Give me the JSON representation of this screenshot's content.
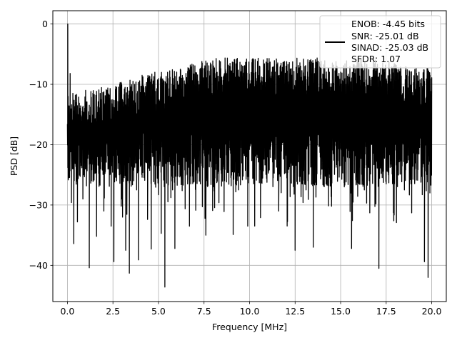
{
  "chart_data": {
    "type": "line",
    "title": "",
    "xlabel": "Frequency [MHz]",
    "ylabel": "PSD [dB]",
    "xlim": [
      -0.8,
      20.8
    ],
    "ylim": [
      -46,
      2.2
    ],
    "xticks": [
      0.0,
      2.5,
      5.0,
      7.5,
      10.0,
      12.5,
      15.0,
      17.5,
      20.0
    ],
    "xtick_labels": [
      "0.0",
      "2.5",
      "5.0",
      "7.5",
      "10.0",
      "12.5",
      "15.0",
      "17.5",
      "20.0"
    ],
    "yticks": [
      0,
      -10,
      -20,
      -30,
      -40
    ],
    "ytick_labels": [
      "0",
      "−10",
      "−20",
      "−30",
      "−40"
    ],
    "grid": true,
    "legend_position": "top-right",
    "series": [
      {
        "color": "#000000",
        "description": "dense noisy PSD spectrum, mostly between about -27 and -6 dB, peak 0 dB at 0 MHz, minimum about -43.6 dB near 5.4 MHz",
        "points": [
          [
            0.0,
            -16.7
          ],
          [
            0.02,
            0.0
          ],
          [
            0.04,
            -12.0
          ],
          [
            0.08,
            -25.5
          ],
          [
            0.15,
            -8.2
          ],
          [
            0.22,
            -29.6
          ],
          [
            0.3,
            -11.5
          ],
          [
            0.35,
            -36.4
          ],
          [
            0.45,
            -13.0
          ],
          [
            0.55,
            -32.8
          ],
          [
            0.7,
            -14.0
          ],
          [
            0.85,
            -29.0
          ],
          [
            1.0,
            -11.0
          ],
          [
            1.2,
            -40.4
          ],
          [
            1.4,
            -12.5
          ],
          [
            1.6,
            -35.2
          ],
          [
            1.8,
            -11.5
          ],
          [
            2.0,
            -31.0
          ],
          [
            2.2,
            -11.0
          ],
          [
            2.4,
            -33.5
          ],
          [
            2.55,
            -39.4
          ],
          [
            2.7,
            -10.5
          ],
          [
            3.0,
            -29.0
          ],
          [
            3.2,
            -37.5
          ],
          [
            3.4,
            -41.3
          ],
          [
            3.6,
            -9.5
          ],
          [
            3.8,
            -27.5
          ],
          [
            3.9,
            -39.1
          ],
          [
            4.1,
            -8.5
          ],
          [
            4.4,
            -32.4
          ],
          [
            4.6,
            -37.3
          ],
          [
            4.8,
            -8.0
          ],
          [
            5.0,
            -28.3
          ],
          [
            5.15,
            -34.7
          ],
          [
            5.35,
            -43.6
          ],
          [
            5.5,
            -8.0
          ],
          [
            5.7,
            -26.0
          ],
          [
            5.9,
            -37.2
          ],
          [
            6.2,
            -7.5
          ],
          [
            6.6,
            -26.5
          ],
          [
            6.7,
            -33.5
          ],
          [
            7.0,
            -7.5
          ],
          [
            7.3,
            -26.5
          ],
          [
            7.6,
            -35.0
          ],
          [
            7.9,
            -7.5
          ],
          [
            8.2,
            -26.3
          ],
          [
            8.6,
            -31.1
          ],
          [
            8.9,
            -7.0
          ],
          [
            9.1,
            -34.9
          ],
          [
            9.4,
            -27.5
          ],
          [
            9.7,
            -7.0
          ],
          [
            9.9,
            -33.5
          ],
          [
            10.2,
            -25.5
          ],
          [
            10.6,
            -32.1
          ],
          [
            11.0,
            -6.5
          ],
          [
            11.3,
            -25.5
          ],
          [
            11.6,
            -31.0
          ],
          [
            12.0,
            -7.0
          ],
          [
            12.3,
            -25.0
          ],
          [
            12.5,
            -37.5
          ],
          [
            12.8,
            -7.0
          ],
          [
            13.1,
            -27.5
          ],
          [
            13.5,
            -37.0
          ],
          [
            13.9,
            -7.0
          ],
          [
            14.2,
            -26.5
          ],
          [
            14.5,
            -30.2
          ],
          [
            14.8,
            -7.0
          ],
          [
            15.2,
            -27.0
          ],
          [
            15.6,
            -37.2
          ],
          [
            15.9,
            -7.0
          ],
          [
            16.3,
            -27.5
          ],
          [
            16.6,
            -31.3
          ],
          [
            17.0,
            -7.5
          ],
          [
            17.1,
            -40.5
          ],
          [
            17.5,
            -26.5
          ],
          [
            17.9,
            -30.8
          ],
          [
            18.2,
            -7.5
          ],
          [
            18.5,
            -27.5
          ],
          [
            18.9,
            -31.3
          ],
          [
            19.3,
            -8.0
          ],
          [
            19.6,
            -39.4
          ],
          [
            19.8,
            -42.0
          ],
          [
            19.9,
            -28.0
          ],
          [
            20.0,
            -11.5
          ]
        ]
      }
    ],
    "legend": {
      "lines": [
        "ENOB: -4.45 bits",
        "SNR: -25.01 dB",
        "SINAD: -25.03 dB",
        "SFDR: 1.07"
      ]
    }
  }
}
